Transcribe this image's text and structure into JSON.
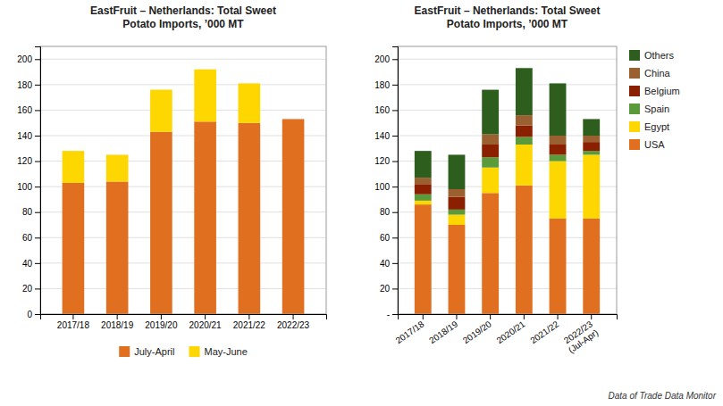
{
  "chart_data": [
    {
      "type": "bar",
      "stacked": true,
      "title": "EastFruit – Netherlands: Total Sweet\nPotato Imports, ’000 MT",
      "categories": [
        "2017/18",
        "2018/19",
        "2019/20",
        "2020/21",
        "2021/22",
        "2022/23"
      ],
      "series": [
        {
          "name": "July-April",
          "color": "#E07020",
          "values": [
            103,
            104,
            143,
            151,
            150,
            153
          ]
        },
        {
          "name": "May-June",
          "color": "#FFD700",
          "values": [
            25,
            21,
            33,
            41,
            31,
            0
          ]
        }
      ],
      "ylim": [
        0,
        210
      ],
      "yticks": [
        0,
        20,
        40,
        60,
        80,
        100,
        120,
        140,
        160,
        180,
        200
      ],
      "grid": true,
      "legend": "bottom"
    },
    {
      "type": "bar",
      "stacked": true,
      "title": "EastFruit – Netherlands: Total Sweet\nPotato Imports, ’000 MT",
      "categories": [
        "2017/18",
        "2018/19",
        "2019/20",
        "2020/21",
        "2021/22",
        "2022/23\n(Jul-Apr)"
      ],
      "series": [
        {
          "name": "USA",
          "color": "#E07020",
          "values": [
            86,
            70,
            95,
            101,
            75,
            75
          ]
        },
        {
          "name": "Egypt",
          "color": "#FFD700",
          "values": [
            3,
            8,
            20,
            32,
            45,
            50
          ]
        },
        {
          "name": "Spain",
          "color": "#5A9A3A",
          "values": [
            5,
            4,
            8,
            6,
            5,
            3
          ]
        },
        {
          "name": "Belgium",
          "color": "#8B2000",
          "values": [
            8,
            10,
            10,
            9,
            8,
            7
          ]
        },
        {
          "name": "China",
          "color": "#9B6030",
          "values": [
            5,
            6,
            8,
            8,
            7,
            5
          ]
        },
        {
          "name": "Others",
          "color": "#2D5E1E",
          "values": [
            21,
            27,
            35,
            37,
            41,
            13
          ]
        }
      ],
      "ylim": [
        0,
        210
      ],
      "yticks": [
        {
          "value": 0,
          "label": "-"
        },
        20,
        40,
        60,
        80,
        100,
        120,
        140,
        160,
        180,
        200
      ],
      "grid": true,
      "legend": "right",
      "annotations": [
        "Data of Trade Data Monitor"
      ]
    }
  ]
}
